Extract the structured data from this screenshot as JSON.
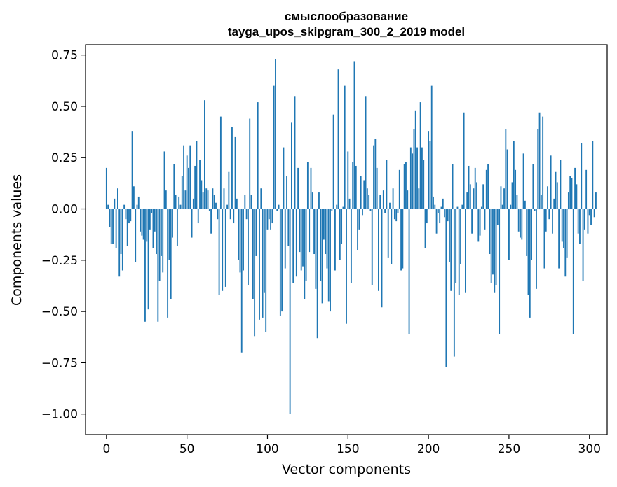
{
  "chart_data": {
    "type": "bar",
    "title_line1": "смыслообразование",
    "title_line2": "tayga_upos_skipgram_300_2_2019 model",
    "xlabel": "Vector components",
    "ylabel": "Components values",
    "xlim": [
      -13,
      311
    ],
    "ylim": [
      -1.1,
      0.8
    ],
    "xticks": [
      0,
      50,
      100,
      150,
      200,
      250,
      300
    ],
    "yticks": [
      -1.0,
      -0.75,
      -0.5,
      -0.25,
      0.0,
      0.25,
      0.5,
      0.75
    ],
    "ytick_labels": [
      "−1.00",
      "−0.75",
      "−0.50",
      "−0.25",
      "0.00",
      "0.25",
      "0.50",
      "0.75"
    ],
    "grid": false,
    "legend": "none",
    "bar_color": "#1f77b4",
    "values": [
      0.2,
      0.02,
      -0.09,
      -0.17,
      -0.17,
      0.05,
      -0.19,
      0.1,
      -0.33,
      -0.22,
      -0.3,
      0.02,
      -0.05,
      -0.18,
      -0.07,
      -0.06,
      0.38,
      0.11,
      -0.26,
      0.02,
      0.06,
      -0.11,
      -0.13,
      -0.15,
      -0.55,
      -0.16,
      -0.49,
      -0.1,
      -0.02,
      -0.19,
      -0.11,
      -0.22,
      -0.55,
      -0.35,
      -0.23,
      -0.31,
      0.28,
      0.09,
      -0.53,
      -0.25,
      -0.44,
      -0.14,
      0.22,
      0.07,
      -0.18,
      0.06,
      0.02,
      0.16,
      0.31,
      0.09,
      0.26,
      0.2,
      0.31,
      -0.14,
      0.05,
      0.21,
      0.33,
      -0.07,
      0.24,
      0.14,
      0.08,
      0.53,
      0.1,
      0.09,
      -0.01,
      -0.12,
      0.1,
      0.07,
      0.03,
      -0.05,
      -0.42,
      0.45,
      -0.4,
      0.1,
      -0.38,
      0.02,
      0.18,
      -0.05,
      0.4,
      -0.07,
      0.35,
      0.05,
      -0.25,
      -0.31,
      -0.7,
      -0.3,
      0.07,
      -0.05,
      -0.37,
      0.44,
      0.07,
      -0.44,
      -0.62,
      -0.23,
      0.52,
      -0.54,
      0.1,
      -0.53,
      -0.41,
      -0.6,
      -0.1,
      -0.05,
      -0.1,
      -0.07,
      0.6,
      0.73,
      -0.01,
      0.02,
      -0.52,
      -0.5,
      0.3,
      -0.29,
      0.16,
      -0.18,
      -1.0,
      0.42,
      -0.36,
      0.55,
      -0.33,
      0.2,
      -0.21,
      -0.3,
      -0.28,
      -0.44,
      -0.35,
      0.23,
      -0.21,
      0.2,
      0.08,
      -0.22,
      -0.39,
      -0.63,
      0.08,
      -0.35,
      -0.46,
      -0.15,
      -0.22,
      -0.29,
      -0.45,
      -0.5,
      -0.01,
      0.46,
      -0.3,
      0.02,
      0.68,
      -0.25,
      -0.17,
      0.01,
      0.6,
      -0.56,
      0.28,
      0.05,
      -0.36,
      0.23,
      0.72,
      0.21,
      -0.2,
      -0.1,
      0.16,
      -0.03,
      0.14,
      0.55,
      0.1,
      0.07,
      -0.01,
      -0.37,
      0.31,
      0.34,
      0.2,
      -0.4,
      0.07,
      -0.48,
      0.09,
      -0.02,
      0.24,
      -0.24,
      0.03,
      -0.27,
      0.1,
      -0.05,
      -0.06,
      -0.02,
      0.19,
      -0.3,
      -0.29,
      0.22,
      0.23,
      0.09,
      -0.61,
      0.3,
      0.27,
      0.39,
      0.48,
      0.3,
      0.1,
      0.52,
      0.3,
      0.24,
      -0.19,
      -0.07,
      0.38,
      0.33,
      0.6,
      0.06,
      0.02,
      -0.12,
      -0.02,
      -0.07,
      0.01,
      0.05,
      -0.04,
      -0.77,
      -0.06,
      -0.26,
      -0.4,
      0.22,
      -0.72,
      -0.36,
      0.01,
      -0.42,
      -0.27,
      0.02,
      0.47,
      -0.41,
      0.08,
      0.21,
      0.12,
      -0.12,
      0.1,
      0.2,
      0.13,
      -0.16,
      -0.13,
      0.01,
      0.12,
      -0.1,
      0.19,
      0.22,
      -0.22,
      -0.36,
      -0.32,
      -0.41,
      -0.37,
      -0.08,
      -0.61,
      0.11,
      0.02,
      0.1,
      0.39,
      0.29,
      -0.25,
      0.02,
      0.13,
      0.33,
      0.19,
      0.07,
      -0.11,
      -0.14,
      -0.15,
      0.27,
      0.04,
      -0.23,
      -0.42,
      -0.53,
      -0.25,
      0.22,
      -0.01,
      -0.39,
      0.39,
      0.47,
      0.07,
      0.45,
      -0.29,
      -0.11,
      0.11,
      -0.05,
      0.26,
      -0.12,
      0.05,
      0.18,
      0.13,
      -0.29,
      0.24,
      -0.16,
      -0.19,
      -0.33,
      -0.24,
      0.08,
      0.16,
      0.15,
      -0.61,
      0.2,
      0.12,
      -0.12,
      -0.17,
      0.32,
      -0.35,
      -0.1,
      0.19,
      -0.12,
      -0.03,
      -0.08,
      0.33,
      -0.04,
      0.08
    ]
  }
}
